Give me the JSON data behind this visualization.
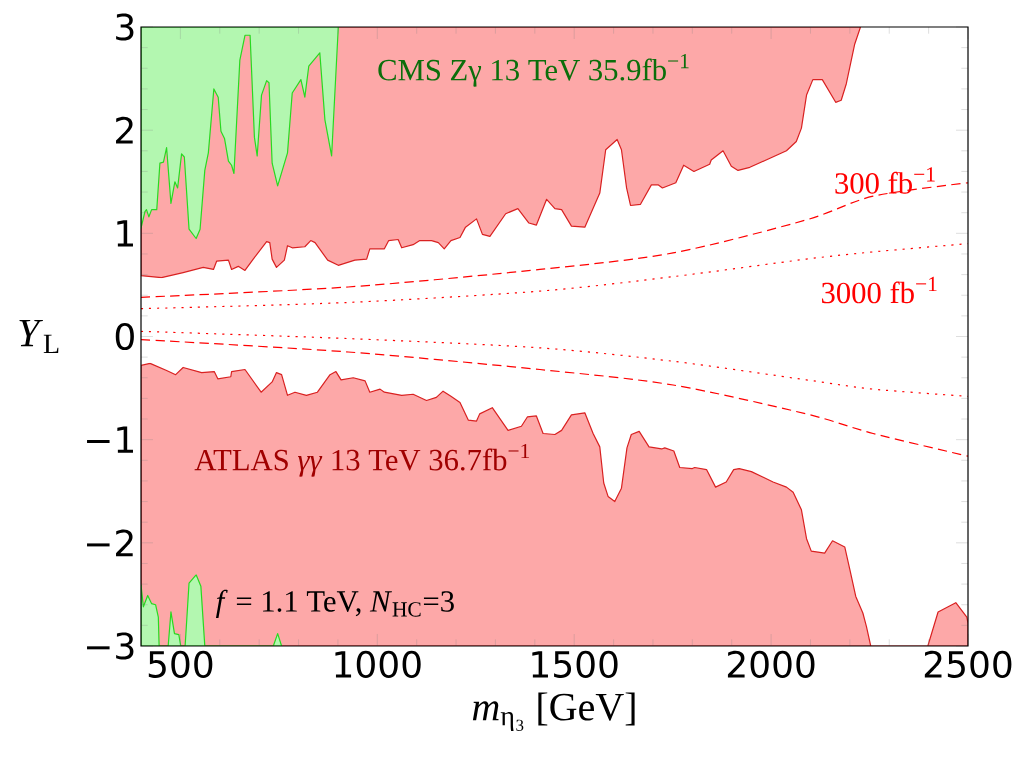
{
  "chart_data": {
    "type": "area",
    "xlabel": "*m*$_{η₃}$ [GeV]",
    "ylabel": "*Y*$_{L}$",
    "xlim": [
      400,
      2500
    ],
    "ylim": [
      -3,
      3
    ],
    "xticks": [
      500,
      1000,
      1500,
      2000,
      2500
    ],
    "yticks": [
      {
        "value": -3,
        "label": "−3"
      },
      {
        "value": -2,
        "label": "−2"
      },
      {
        "value": -1,
        "label": "−1"
      },
      0,
      1,
      2,
      3
    ],
    "x": [
      400,
      926,
      1413,
      1751,
      2089,
      2259,
      2500
    ],
    "series": [
      {
        "color": "#fda8a8",
        "x": [
          400,
          400,
          452,
          507,
          558,
          584,
          592,
          622,
          630,
          647,
          664,
          685,
          719,
          727,
          733,
          744,
          764,
          772,
          784,
          816,
          831,
          842,
          874,
          901,
          943,
          973,
          981,
          1018,
          1029,
          1053,
          1062,
          1091,
          1108,
          1138,
          1155,
          1170,
          1187,
          1210,
          1224,
          1252,
          1267,
          1286,
          1326,
          1357,
          1385,
          1404,
          1430,
          1451,
          1468,
          1493,
          1527,
          1565,
          1580,
          1609,
          1620,
          1633,
          1643,
          1668,
          1696,
          1713,
          1724,
          1758,
          1778,
          1804,
          1844,
          1848,
          1878,
          1899,
          1916,
          1946,
          2039,
          2064,
          2077,
          2090,
          2106,
          2130,
          2164,
          2178,
          2191,
          2212,
          2227
        ],
        "values": [
          3,
          0.59,
          0.57,
          0.62,
          0.67,
          0.65,
          0.73,
          0.74,
          0.65,
          0.68,
          0.64,
          0.75,
          0.92,
          0.91,
          0.75,
          0.67,
          0.74,
          0.88,
          0.86,
          0.87,
          0.93,
          0.91,
          0.74,
          0.69,
          0.74,
          0.75,
          0.85,
          0.85,
          0.93,
          0.94,
          0.86,
          0.89,
          0.93,
          0.93,
          0.91,
          0.85,
          0.93,
          0.96,
          1.06,
          1.14,
          0.99,
          0.97,
          1.19,
          1.24,
          1.1,
          1.08,
          1.33,
          1.24,
          1.23,
          1.07,
          1.06,
          1.39,
          1.81,
          1.91,
          1.81,
          1.44,
          1.27,
          1.28,
          1.47,
          1.47,
          1.44,
          1.49,
          1.66,
          1.6,
          1.67,
          1.71,
          1.8,
          1.65,
          1.61,
          1.64,
          1.8,
          1.89,
          2.02,
          2.34,
          2.49,
          2.49,
          2.27,
          2.29,
          2.45,
          2.83,
          3
        ]
      },
      {
        "color": "#fda8a8",
        "x": [
          400,
          400,
          423,
          465,
          488,
          507,
          554,
          586,
          595,
          628,
          630,
          664,
          705,
          733,
          744,
          757,
          772,
          791,
          820,
          848,
          880,
          895,
          908,
          939,
          969,
          981,
          1007,
          1018,
          1062,
          1091,
          1125,
          1150,
          1167,
          1187,
          1210,
          1231,
          1252,
          1260,
          1292,
          1332,
          1366,
          1381,
          1404,
          1421,
          1451,
          1468,
          1493,
          1527,
          1548,
          1565,
          1575,
          1586,
          1603,
          1620,
          1634,
          1645,
          1665,
          1690,
          1722,
          1730,
          1753,
          1768,
          1800,
          1806,
          1836,
          1859,
          1886,
          1905,
          1919,
          1950,
          2005,
          2039,
          2056,
          2077,
          2090,
          2102,
          2136,
          2156,
          2187,
          2200,
          2215,
          2233,
          2242,
          2253,
          2398,
          2424,
          2469,
          2497,
          2500,
          2500
        ],
        "values": [
          -3,
          -0.28,
          -0.26,
          -0.33,
          -0.37,
          -0.3,
          -0.35,
          -0.34,
          -0.41,
          -0.39,
          -0.34,
          -0.32,
          -0.54,
          -0.44,
          -0.35,
          -0.37,
          -0.57,
          -0.54,
          -0.57,
          -0.54,
          -0.37,
          -0.34,
          -0.42,
          -0.4,
          -0.43,
          -0.54,
          -0.51,
          -0.54,
          -0.57,
          -0.56,
          -0.62,
          -0.59,
          -0.53,
          -0.58,
          -0.64,
          -0.81,
          -0.82,
          -0.75,
          -0.69,
          -0.91,
          -0.87,
          -0.78,
          -0.77,
          -0.94,
          -0.95,
          -0.91,
          -0.76,
          -0.74,
          -0.94,
          -1.07,
          -1.42,
          -1.55,
          -1.6,
          -1.47,
          -1.08,
          -0.95,
          -0.92,
          -1.07,
          -1.09,
          -1.08,
          -1.11,
          -1.27,
          -1.28,
          -1.27,
          -1.29,
          -1.46,
          -1.41,
          -1.29,
          -1.28,
          -1.31,
          -1.41,
          -1.46,
          -1.51,
          -1.68,
          -1.96,
          -2.08,
          -2.1,
          -1.98,
          -2.04,
          -2.26,
          -2.52,
          -2.68,
          -2.81,
          -3,
          -3,
          -2.67,
          -2.58,
          -2.72,
          -2.78,
          -3
        ]
      },
      {
        "color": "#b3f7b0",
        "x": [
          400,
          400,
          410,
          414,
          420,
          427,
          440,
          448,
          457,
          465,
          476,
          486,
          493,
          503,
          510,
          522,
          540,
          550,
          562,
          571,
          585,
          596,
          603,
          612,
          622,
          630,
          636,
          651,
          664,
          677,
          688,
          695,
          706,
          719,
          725,
          733,
          747,
          772,
          784,
          806,
          816,
          826,
          854,
          867,
          884,
          901
        ],
        "values": [
          3,
          1.05,
          1.21,
          1.23,
          1.16,
          1.23,
          1.23,
          1.68,
          1.69,
          1.83,
          1.29,
          1.5,
          1.44,
          1.77,
          1.74,
          1.04,
          0.95,
          1.04,
          1.61,
          1.78,
          2.4,
          2.32,
          1.99,
          1.92,
          1.7,
          1.66,
          1.58,
          2.68,
          2.92,
          2.92,
          1.93,
          1.75,
          2.34,
          2.48,
          2.46,
          1.68,
          1.46,
          1.78,
          2.36,
          2.49,
          2.32,
          2.62,
          2.75,
          2.1,
          1.75,
          3
        ]
      },
      {
        "color": "#b3f7b0",
        "x": [
          400,
          400,
          406,
          417,
          427,
          437,
          444,
          446,
          469,
          476,
          485,
          496,
          501,
          512,
          522,
          540,
          552,
          562,
          736,
          747,
          757
        ],
        "values": [
          -3,
          -2.41,
          -2.62,
          -2.51,
          -2.59,
          -2.6,
          -2.72,
          -3,
          -3,
          -2.67,
          -2.88,
          -2.89,
          -3,
          -3,
          -2.39,
          -2.31,
          -2.42,
          -3,
          -3,
          -2.88,
          -3
        ]
      },
      {
        "type": "line",
        "color": "#ff0000",
        "line_style": "dashed",
        "values": [
          0.38,
          0.48,
          0.65,
          0.81,
          1.13,
          1.36,
          1.49
        ]
      },
      {
        "type": "line",
        "color": "#ff0000",
        "line_style": "dashed",
        "values": [
          -0.03,
          -0.15,
          -0.32,
          -0.47,
          -0.75,
          -0.94,
          -1.16
        ]
      },
      {
        "type": "line",
        "color": "#ff0000",
        "line_style": "dotted",
        "values": [
          0.27,
          0.33,
          0.44,
          0.58,
          0.75,
          0.82,
          0.9
        ]
      },
      {
        "type": "line",
        "color": "#ff0000",
        "line_style": "dotted",
        "values": [
          0.05,
          -0.02,
          -0.11,
          -0.24,
          -0.42,
          -0.51,
          -0.58
        ]
      }
    ],
    "annotations": [
      "CMS Zγ 13 TeV 35.9fb$^{−1}$",
      "ATLAS *γγ* 13 TeV 36.7fb$^{−1}$",
      "300 fb$^{−1}$",
      "3000 fb$^{−1}$",
      "*f* = 1.1 TeV, *N*$_{HC}$=3"
    ],
    "grid": false
  }
}
